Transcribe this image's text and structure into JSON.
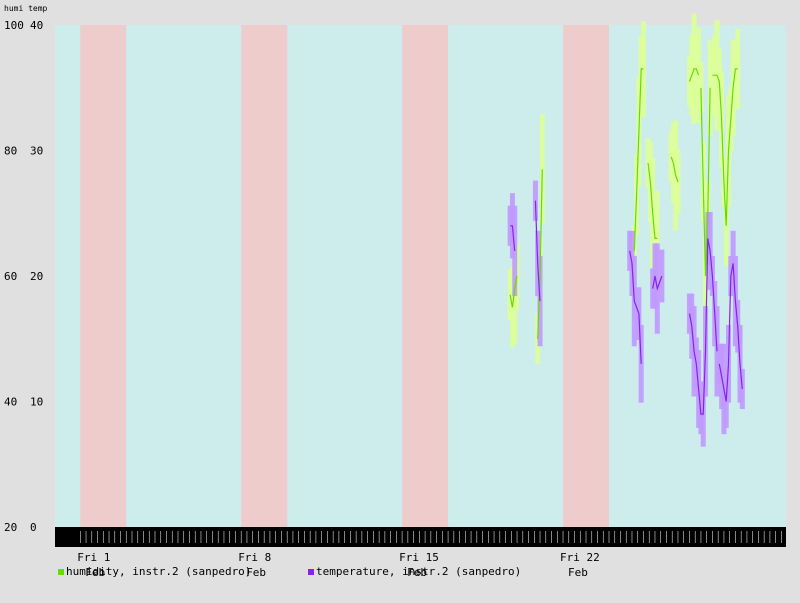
{
  "header": {
    "left_axis": "humi",
    "right_axis": "temp"
  },
  "chart_data": {
    "type": "line",
    "title": "",
    "x_unit": "days (day 0 = Fri 1 Feb, 00:00)",
    "xlim": [
      -1.1,
      30.7
    ],
    "ylim_left": [
      20,
      100
    ],
    "ylim_right": [
      0,
      40
    ],
    "yticks_left": [
      "20",
      "40",
      "60",
      "80",
      "100"
    ],
    "yticks_right": [
      "0",
      "10",
      "20",
      "30",
      "40"
    ],
    "xticks": [
      {
        "day": 0,
        "label": "Fri 1",
        "sub": "Feb"
      },
      {
        "day": 7,
        "label": "Fri 8",
        "sub": "Feb"
      },
      {
        "day": 14,
        "label": "Fri 15",
        "sub": "Feb"
      },
      {
        "day": 21,
        "label": "Fri 22",
        "sub": "Feb"
      }
    ],
    "weekend_bands": [
      [
        0,
        2
      ],
      [
        7,
        9
      ],
      [
        14,
        16
      ],
      [
        21,
        23
      ]
    ],
    "colors": {
      "weekday_band": "#cdecec",
      "weekend_band": "#eecccc",
      "humidity_line": "#66dd00",
      "humidity_range": "#ddff99",
      "temperature_line": "#8822ee",
      "temperature_range": "#c099ff",
      "background": "#e0e0e0"
    },
    "series": [
      {
        "name": "humidity, instr.2 (sanpedro)",
        "axis": "left",
        "segments": [
          [
            [
              18.7,
              57
            ],
            [
              18.8,
              55
            ],
            [
              18.9,
              58
            ],
            [
              19.0,
              60
            ]
          ],
          [
            [
              19.9,
              50
            ],
            [
              20.0,
              60
            ],
            [
              20.1,
              77
            ]
          ],
          [
            [
              24.1,
              64
            ],
            [
              24.2,
              73
            ],
            [
              24.3,
              83
            ],
            [
              24.4,
              93
            ],
            [
              24.5,
              93
            ]
          ],
          [
            [
              24.7,
              78
            ],
            [
              24.8,
              75
            ],
            [
              24.9,
              70
            ],
            [
              25.0,
              66
            ],
            [
              25.1,
              66
            ]
          ],
          [
            [
              25.7,
              79
            ],
            [
              25.8,
              78
            ],
            [
              25.9,
              76
            ],
            [
              26.0,
              75
            ]
          ],
          [
            [
              26.5,
              91
            ],
            [
              26.6,
              92
            ],
            [
              26.7,
              93
            ],
            [
              26.8,
              93
            ],
            [
              26.9,
              92
            ]
          ],
          [
            [
              27.0,
              90
            ],
            [
              27.1,
              75
            ],
            [
              27.2,
              60
            ],
            [
              27.3,
              70
            ],
            [
              27.4,
              90
            ]
          ],
          [
            [
              27.5,
              92
            ],
            [
              27.6,
              92
            ],
            [
              27.7,
              92
            ],
            [
              27.8,
              91
            ],
            [
              27.9,
              85
            ],
            [
              28.0,
              75
            ],
            [
              28.1,
              68
            ],
            [
              28.2,
              80
            ],
            [
              28.3,
              85
            ],
            [
              28.4,
              90
            ],
            [
              28.5,
              93
            ],
            [
              28.6,
              93
            ]
          ]
        ]
      },
      {
        "name": "temperature, instr.2 (sanpedro)",
        "axis": "right",
        "segments": [
          [
            [
              18.7,
              24
            ],
            [
              18.8,
              24
            ],
            [
              18.9,
              22
            ]
          ],
          [
            [
              19.8,
              26
            ],
            [
              19.9,
              21
            ],
            [
              20.0,
              18
            ]
          ],
          [
            [
              23.9,
              22
            ],
            [
              24.0,
              21
            ],
            [
              24.1,
              18
            ],
            [
              24.3,
              17
            ],
            [
              24.4,
              13
            ]
          ],
          [
            [
              24.9,
              19
            ],
            [
              25.0,
              20
            ],
            [
              25.1,
              19
            ],
            [
              25.3,
              20
            ]
          ],
          [
            [
              26.5,
              17
            ],
            [
              26.6,
              16
            ],
            [
              26.7,
              14
            ],
            [
              26.8,
              13
            ],
            [
              26.9,
              11
            ],
            [
              27.0,
              9
            ],
            [
              27.1,
              9
            ],
            [
              27.2,
              14
            ],
            [
              27.3,
              23
            ],
            [
              27.4,
              22
            ],
            [
              27.5,
              20
            ],
            [
              27.6,
              17
            ],
            [
              27.7,
              14
            ]
          ],
          [
            [
              27.8,
              13
            ],
            [
              27.9,
              12
            ],
            [
              28.0,
              11
            ],
            [
              28.1,
              10
            ],
            [
              28.2,
              13
            ],
            [
              28.3,
              20
            ],
            [
              28.4,
              21
            ],
            [
              28.5,
              18
            ],
            [
              28.6,
              16
            ],
            [
              28.7,
              13
            ],
            [
              28.8,
              11
            ]
          ]
        ]
      }
    ]
  }
}
